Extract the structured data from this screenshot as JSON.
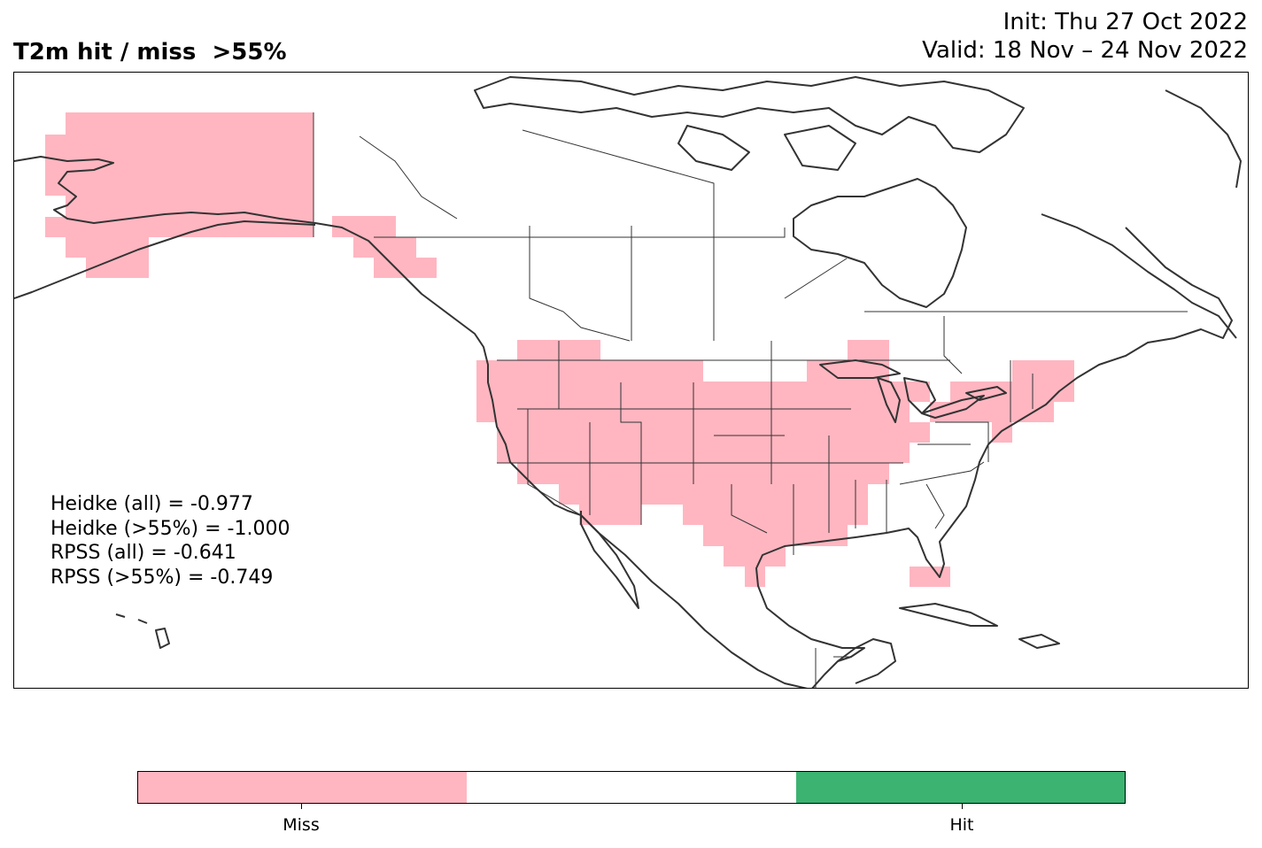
{
  "title": "T2m hit / miss  >55%",
  "init": "Init: Thu 27 Oct 2022",
  "valid": "Valid: 18 Nov – 24 Nov 2022",
  "stats": [
    "Heidke (all) = -0.977",
    "Heidke (>55%) = -1.000",
    "RPSS (all) = -0.641",
    "RPSS (>55%) = -0.749"
  ],
  "colorbar": {
    "colors": [
      "#ffb6c1",
      "#ffffff",
      "#3cb371"
    ],
    "tick_labels": [
      "Miss",
      "Hit"
    ]
  },
  "map": {
    "miss_color": "#ffb6c1",
    "hit_color": "#3cb371",
    "coastline_color": "#333333",
    "miss_regions": [
      "Alaska",
      "Southeast Alaska panhandle",
      "Western United States",
      "Central United States",
      "Great Lakes region",
      "Northeastern United States",
      "South Florida"
    ],
    "hit_regions": []
  }
}
